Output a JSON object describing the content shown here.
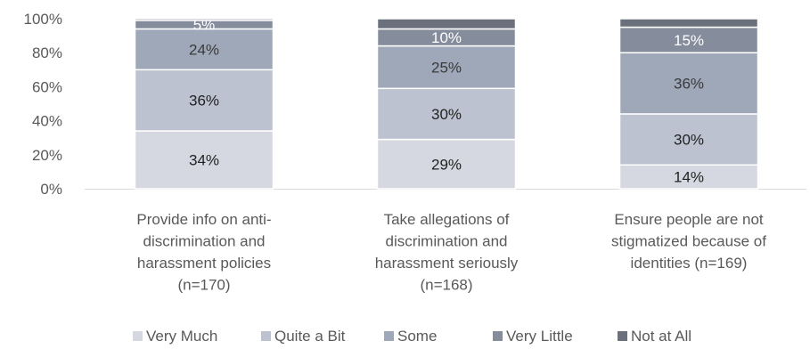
{
  "chart_data": {
    "type": "bar",
    "stacked": true,
    "percent": true,
    "title": "",
    "xlabel": "",
    "ylabel": "",
    "ylim": [
      0,
      100
    ],
    "y_ticks": [
      "0%",
      "20%",
      "40%",
      "60%",
      "80%",
      "100%"
    ],
    "categories": [
      "Provide info on anti-discrimination and harassment policies (n=170)",
      "Take allegations of discrimination and harassment seriously (n=168)",
      "Ensure people are not stigmatized because of identities (n=169)"
    ],
    "category_label_lines": [
      [
        "Provide info on anti-",
        "discrimination and",
        "harassment policies",
        "(n=170)"
      ],
      [
        "Take allegations of",
        "discrimination and",
        "harassment seriously",
        "(n=168)"
      ],
      [
        "Ensure people are not",
        "stigmatized because of",
        "identities (n=169)"
      ]
    ],
    "series": [
      {
        "name": "Very Much",
        "color": "#d5d8e0",
        "values": [
          34,
          29,
          14
        ],
        "labels": [
          "34%",
          "29%",
          "14%"
        ],
        "label_color": "#222222"
      },
      {
        "name": "Quite a Bit",
        "color": "#bcc2d0",
        "values": [
          36,
          30,
          30
        ],
        "labels": [
          "36%",
          "30%",
          "30%"
        ],
        "label_color": "#222222"
      },
      {
        "name": "Some",
        "color": "#9ea8b9",
        "values": [
          24,
          25,
          36
        ],
        "labels": [
          "24%",
          "25%",
          "36%"
        ],
        "label_color": "#3a3a3a"
      },
      {
        "name": "Very Little",
        "color": "#858d9c",
        "values": [
          5,
          10,
          15
        ],
        "labels": [
          "5%",
          "10%",
          "15%"
        ],
        "label_color": "#ffffff"
      },
      {
        "name": "Not at All",
        "color": "#6b717c",
        "values": [
          1,
          6,
          5
        ],
        "labels": [
          "",
          "",
          ""
        ],
        "label_color": "#ffffff"
      }
    ],
    "grid": false,
    "legend_position": "bottom"
  }
}
